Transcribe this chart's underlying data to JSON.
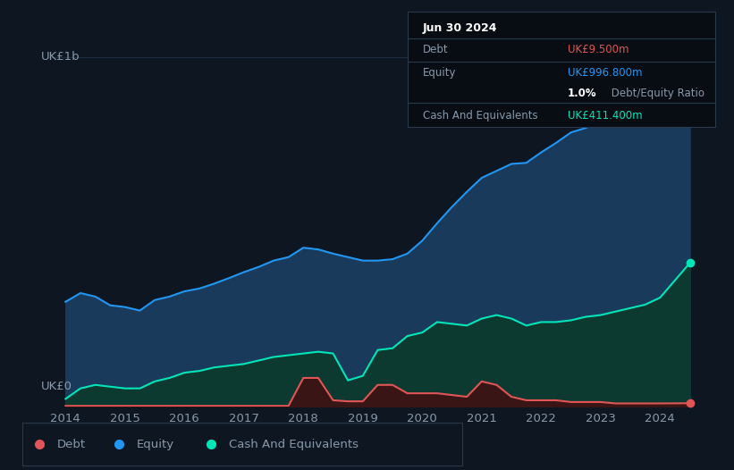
{
  "bg_color": "#0e1621",
  "plot_bg_color": "#0e1621",
  "equity_color": "#2196f3",
  "debt_color": "#e05555",
  "cash_color": "#00e5b8",
  "equity_fill_color": "#1a3a5c",
  "cash_fill_color": "#0d3a30",
  "debt_fill_color": "#3a1515",
  "grid_color": "#1e2d40",
  "text_color": "#8899aa",
  "white_color": "#ffffff",
  "legend_border_color": "#2a3a4a",
  "tooltip_bg": "#080d14",
  "tooltip_border": "#2a3a4a",
  "ylabel_top": "UK£1b",
  "ylabel_bottom": "UK£0",
  "xlabel_years": [
    "2014",
    "2015",
    "2016",
    "2017",
    "2018",
    "2019",
    "2020",
    "2021",
    "2022",
    "2023",
    "2024"
  ],
  "legend_labels": [
    "Debt",
    "Equity",
    "Cash And Equivalents"
  ],
  "tooltip_title": "Jun 30 2024",
  "tooltip_debt_label": "Debt",
  "tooltip_debt_value": "UK£9.500m",
  "tooltip_equity_label": "Equity",
  "tooltip_equity_value": "UK£996.800m",
  "tooltip_ratio_bold": "1.0%",
  "tooltip_ratio_rest": " Debt/Equity Ratio",
  "tooltip_cash_label": "Cash And Equivalents",
  "tooltip_cash_value": "UK£411.400m",
  "years": [
    2014.0,
    2014.25,
    2014.5,
    2014.75,
    2015.0,
    2015.25,
    2015.5,
    2015.75,
    2016.0,
    2016.25,
    2016.5,
    2016.75,
    2017.0,
    2017.25,
    2017.5,
    2017.75,
    2018.0,
    2018.25,
    2018.5,
    2018.75,
    2019.0,
    2019.25,
    2019.5,
    2019.75,
    2020.0,
    2020.25,
    2020.5,
    2020.75,
    2021.0,
    2021.25,
    2021.5,
    2021.75,
    2022.0,
    2022.25,
    2022.5,
    2022.75,
    2023.0,
    2023.25,
    2023.5,
    2023.75,
    2024.0,
    2024.5
  ],
  "equity": [
    300,
    325,
    315,
    290,
    285,
    275,
    305,
    315,
    330,
    338,
    352,
    368,
    385,
    400,
    418,
    428,
    455,
    450,
    438,
    428,
    418,
    418,
    422,
    438,
    475,
    525,
    572,
    615,
    655,
    675,
    695,
    698,
    728,
    755,
    785,
    798,
    818,
    838,
    858,
    878,
    908,
    997
  ],
  "debt": [
    2,
    2,
    2,
    2,
    2,
    2,
    2,
    2,
    2,
    2,
    2,
    2,
    2,
    2,
    2,
    2,
    82,
    82,
    18,
    15,
    15,
    62,
    62,
    38,
    38,
    38,
    33,
    28,
    72,
    62,
    28,
    18,
    18,
    18,
    13,
    13,
    13,
    9,
    9,
    9,
    9,
    9.5
  ],
  "cash": [
    22,
    52,
    62,
    57,
    52,
    52,
    72,
    82,
    97,
    102,
    112,
    117,
    122,
    132,
    142,
    147,
    152,
    157,
    152,
    75,
    88,
    162,
    167,
    202,
    212,
    242,
    237,
    232,
    252,
    262,
    252,
    232,
    242,
    242,
    247,
    257,
    262,
    272,
    282,
    292,
    312,
    411
  ],
  "ylim": [
    0,
    1050
  ],
  "xlim": [
    2013.7,
    2024.75
  ]
}
